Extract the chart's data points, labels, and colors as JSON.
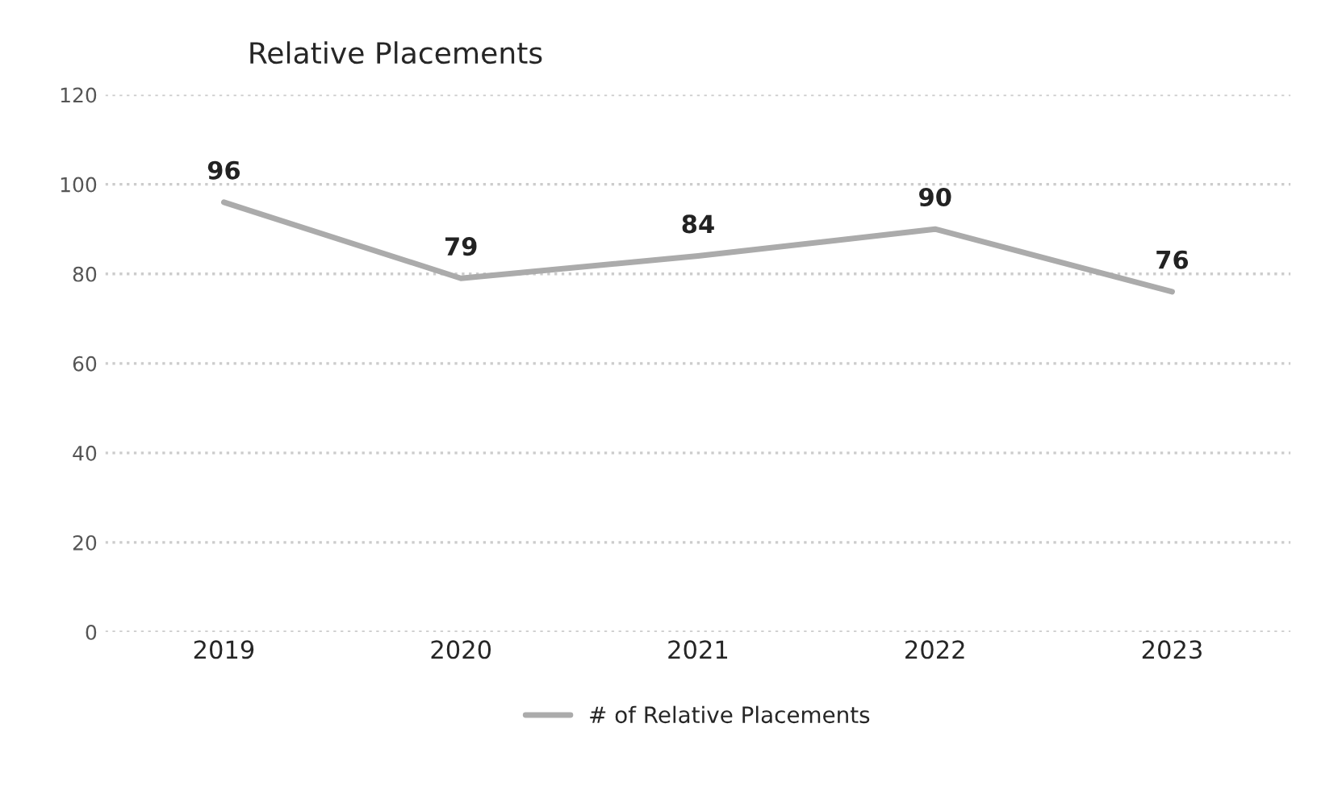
{
  "chart_data": {
    "type": "line",
    "title": "Relative Placements",
    "categories": [
      "2019",
      "2020",
      "2021",
      "2022",
      "2023"
    ],
    "series": [
      {
        "name": "# of Relative Placements",
        "color": "#ababab",
        "values": [
          96,
          79,
          84,
          90,
          76
        ]
      }
    ],
    "ylim": [
      0,
      120
    ],
    "yticks": [
      0,
      20,
      40,
      60,
      80,
      100,
      120
    ],
    "grid": "y",
    "legend": "bottom",
    "data_labels": true,
    "marker": "none",
    "line_style": "solid"
  }
}
